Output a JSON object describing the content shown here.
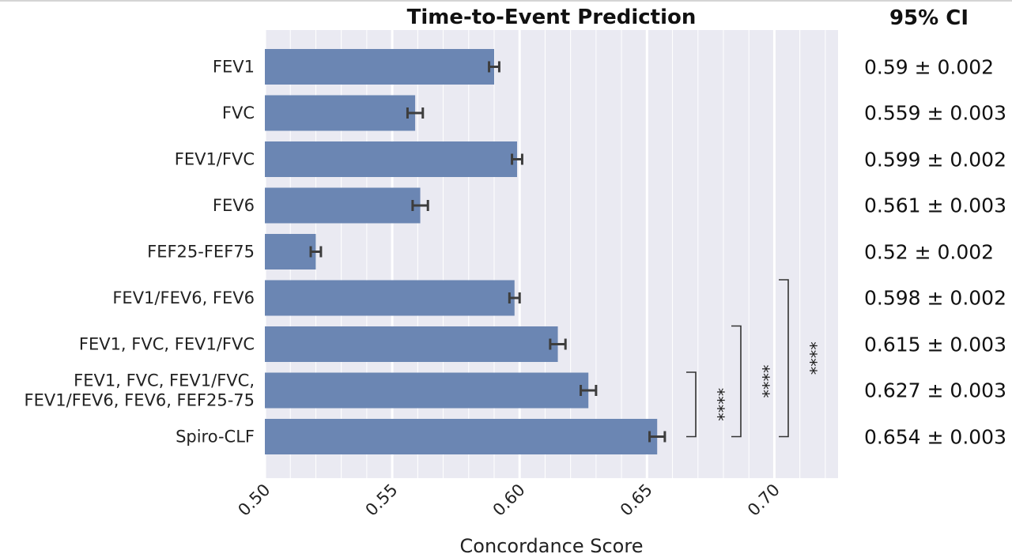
{
  "chart_data": {
    "type": "bar",
    "orientation": "horizontal",
    "title": "Time-to-Event Prediction",
    "xlabel": "Concordance Score",
    "ylabel": "",
    "xlim": [
      0.5,
      0.725
    ],
    "xticks": [
      "0.50",
      "0.55",
      "0.60",
      "0.65",
      "0.70"
    ],
    "grid": true,
    "categories": [
      [
        "FEV1"
      ],
      [
        "FVC"
      ],
      [
        "FEV1/FVC"
      ],
      [
        "FEV6"
      ],
      [
        "FEF25-FEF75"
      ],
      [
        "FEV1/FEV6, FEV6"
      ],
      [
        "FEV1, FVC, FEV1/FVC"
      ],
      [
        "FEV1, FVC, FEV1/FVC,",
        "FEV1/FEV6, FEV6, FEF25-75"
      ],
      [
        "Spiro-CLF"
      ]
    ],
    "values": [
      0.59,
      0.559,
      0.599,
      0.561,
      0.52,
      0.598,
      0.615,
      0.627,
      0.654
    ],
    "errors": [
      0.002,
      0.003,
      0.002,
      0.003,
      0.002,
      0.002,
      0.003,
      0.003,
      0.003
    ],
    "bar_color": "#6b86b3",
    "background_color": "#eaeaf2",
    "significance": [
      {
        "from": 7,
        "to": 8,
        "label": "****"
      },
      {
        "from": 6,
        "to": 8,
        "label": "****"
      },
      {
        "from": 5,
        "to": 8,
        "label": "****"
      }
    ],
    "ci_header": "95% CI",
    "ci_labels": [
      "0.59 ± 0.002",
      "0.559 ± 0.003",
      "0.599 ± 0.002",
      "0.561 ± 0.003",
      "0.52 ± 0.002",
      "0.598 ± 0.002",
      "0.615 ± 0.003",
      "0.627 ± 0.003",
      "0.654 ± 0.003"
    ]
  }
}
